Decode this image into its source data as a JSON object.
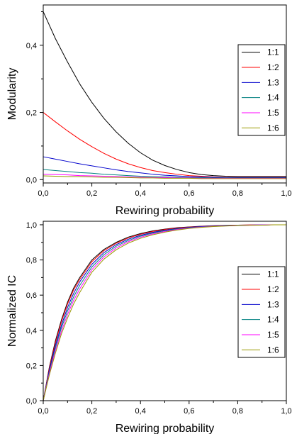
{
  "chart_data": [
    {
      "type": "line",
      "xlabel": "Rewiring probability",
      "ylabel": "Modularity",
      "xlim": [
        0,
        1
      ],
      "ylim": [
        -0.01,
        0.52
      ],
      "xticks": [
        0,
        0.2,
        0.4,
        0.6,
        0.8,
        1
      ],
      "xtick_labels": [
        "0,0",
        "0,2",
        "0,4",
        "0,6",
        "0,8",
        "1,0"
      ],
      "yticks": [
        0,
        0.2,
        0.4
      ],
      "ytick_labels": [
        "0,0",
        "0,2",
        "0,4"
      ],
      "legend_position": "right",
      "x": [
        0,
        0.05,
        0.1,
        0.15,
        0.2,
        0.25,
        0.3,
        0.35,
        0.4,
        0.45,
        0.5,
        0.55,
        0.6,
        0.65,
        0.7,
        0.75,
        0.8,
        0.85,
        0.9,
        0.95,
        1
      ],
      "series": [
        {
          "name": "1:1",
          "color": "#000000",
          "values": [
            0.5,
            0.42,
            0.35,
            0.285,
            0.23,
            0.182,
            0.142,
            0.108,
            0.08,
            0.058,
            0.042,
            0.03,
            0.021,
            0.015,
            0.012,
            0.01,
            0.009,
            0.009,
            0.009,
            0.009,
            0.009
          ]
        },
        {
          "name": "1:2",
          "color": "#ff0000",
          "values": [
            0.2,
            0.172,
            0.145,
            0.12,
            0.098,
            0.078,
            0.061,
            0.047,
            0.036,
            0.027,
            0.021,
            0.016,
            0.012,
            0.01,
            0.008,
            0.007,
            0.007,
            0.007,
            0.007,
            0.007,
            0.007
          ]
        },
        {
          "name": "1:3",
          "color": "#0000cc",
          "values": [
            0.068,
            0.061,
            0.054,
            0.047,
            0.041,
            0.035,
            0.029,
            0.024,
            0.02,
            0.016,
            0.013,
            0.011,
            0.009,
            0.008,
            0.007,
            0.006,
            0.006,
            0.006,
            0.006,
            0.006,
            0.006
          ]
        },
        {
          "name": "1:4",
          "color": "#008080",
          "values": [
            0.03,
            0.027,
            0.024,
            0.021,
            0.019,
            0.016,
            0.014,
            0.012,
            0.01,
            0.009,
            0.008,
            0.007,
            0.006,
            0.006,
            0.005,
            0.005,
            0.005,
            0.005,
            0.005,
            0.005,
            0.005
          ]
        },
        {
          "name": "1:5",
          "color": "#ff00ff",
          "values": [
            0.016,
            0.015,
            0.014,
            0.012,
            0.011,
            0.01,
            0.009,
            0.008,
            0.007,
            0.006,
            0.006,
            0.005,
            0.005,
            0.004,
            0.004,
            0.004,
            0.004,
            0.004,
            0.004,
            0.004,
            0.004
          ]
        },
        {
          "name": "1:6",
          "color": "#999900",
          "values": [
            0.011,
            0.01,
            0.009,
            0.009,
            0.008,
            0.007,
            0.007,
            0.006,
            0.005,
            0.005,
            0.004,
            0.004,
            0.004,
            0.003,
            0.003,
            0.003,
            0.003,
            0.003,
            0.003,
            0.003,
            0.003
          ]
        }
      ]
    },
    {
      "type": "line",
      "xlabel": "Rewiring probability",
      "ylabel": "Normalized IC",
      "xlim": [
        0,
        1
      ],
      "ylim": [
        0,
        1.02
      ],
      "xticks": [
        0,
        0.2,
        0.4,
        0.6,
        0.8,
        1
      ],
      "xtick_labels": [
        "0,0",
        "0,2",
        "0,4",
        "0,6",
        "0,8",
        "1,0"
      ],
      "yticks": [
        0,
        0.2,
        0.4,
        0.6,
        0.8,
        1
      ],
      "ytick_labels": [
        "0,0",
        "0,2",
        "0,4",
        "0,6",
        "0,8",
        "1,0"
      ],
      "legend_position": "right",
      "x": [
        0,
        0.025,
        0.05,
        0.075,
        0.1,
        0.125,
        0.15,
        0.2,
        0.25,
        0.3,
        0.35,
        0.4,
        0.45,
        0.5,
        0.55,
        0.6,
        0.65,
        0.7,
        0.75,
        0.8,
        0.85,
        0.9,
        0.95,
        1
      ],
      "series": [
        {
          "name": "1:1",
          "color": "#000000",
          "values": [
            0,
            0.19,
            0.34,
            0.46,
            0.56,
            0.64,
            0.7,
            0.8,
            0.86,
            0.9,
            0.93,
            0.95,
            0.965,
            0.975,
            0.983,
            0.988,
            0.992,
            0.995,
            0.997,
            0.998,
            0.999,
            0.999,
            1,
            1
          ]
        },
        {
          "name": "1:2",
          "color": "#ff0000",
          "values": [
            0,
            0.185,
            0.33,
            0.45,
            0.55,
            0.63,
            0.69,
            0.79,
            0.853,
            0.895,
            0.925,
            0.946,
            0.962,
            0.973,
            0.981,
            0.987,
            0.991,
            0.994,
            0.996,
            0.998,
            0.999,
            0.999,
            1,
            1
          ]
        },
        {
          "name": "1:3",
          "color": "#0000cc",
          "values": [
            0,
            0.175,
            0.315,
            0.43,
            0.53,
            0.61,
            0.675,
            0.775,
            0.842,
            0.887,
            0.918,
            0.94,
            0.957,
            0.969,
            0.978,
            0.985,
            0.99,
            0.993,
            0.996,
            0.997,
            0.998,
            0.999,
            1,
            1
          ]
        },
        {
          "name": "1:4",
          "color": "#008080",
          "values": [
            0,
            0.165,
            0.3,
            0.415,
            0.51,
            0.59,
            0.655,
            0.76,
            0.83,
            0.878,
            0.911,
            0.935,
            0.953,
            0.966,
            0.976,
            0.983,
            0.988,
            0.992,
            0.995,
            0.997,
            0.998,
            0.999,
            1,
            1
          ]
        },
        {
          "name": "1:5",
          "color": "#ff00ff",
          "values": [
            0,
            0.155,
            0.285,
            0.395,
            0.49,
            0.57,
            0.635,
            0.745,
            0.818,
            0.868,
            0.904,
            0.929,
            0.948,
            0.962,
            0.973,
            0.981,
            0.987,
            0.991,
            0.994,
            0.996,
            0.998,
            0.999,
            1,
            1
          ]
        },
        {
          "name": "1:6",
          "color": "#999900",
          "values": [
            0,
            0.145,
            0.27,
            0.38,
            0.47,
            0.55,
            0.615,
            0.73,
            0.805,
            0.858,
            0.896,
            0.923,
            0.943,
            0.958,
            0.97,
            0.979,
            0.985,
            0.99,
            0.993,
            0.996,
            0.997,
            0.998,
            1,
            1
          ]
        }
      ]
    }
  ]
}
